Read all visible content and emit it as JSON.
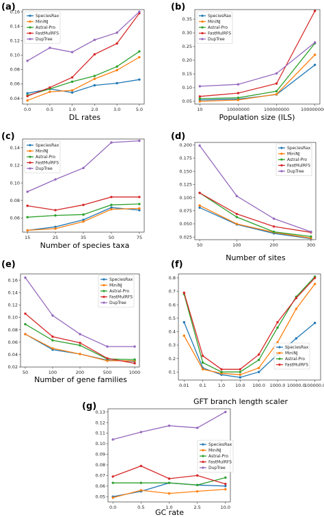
{
  "colors": {
    "SpeciesRax": "#1f77b4",
    "MiniNJ": "#ff7f0e",
    "Astral-Pro": "#2ca02c",
    "FastMulRFS": "#d62728",
    "DupTree": "#9467bd"
  },
  "chart_data": [
    {
      "panel": "(a)",
      "type": "line",
      "xlabel": "DL rates",
      "categories": [
        "0.0",
        "0.5",
        "1.0",
        "2.0",
        "3.0",
        "5.0"
      ],
      "yticks": [
        "0.04",
        "0.06",
        "0.08",
        "0.10",
        "0.12",
        "0.14",
        "0.16"
      ],
      "ylim": [
        0.032,
        0.163
      ],
      "legend": "upper-left",
      "series": [
        {
          "name": "SpeciesRax",
          "values": [
            0.047,
            0.053,
            0.048,
            0.058,
            0.061,
            0.066
          ]
        },
        {
          "name": "MiniNJ",
          "values": [
            0.037,
            0.049,
            0.051,
            0.067,
            0.079,
            0.097
          ]
        },
        {
          "name": "Astral-Pro",
          "values": [
            0.044,
            0.053,
            0.063,
            0.071,
            0.084,
            0.105
          ]
        },
        {
          "name": "FastMulRFS",
          "values": [
            0.043,
            0.055,
            0.069,
            0.101,
            0.116,
            0.158
          ]
        },
        {
          "name": "DupTree",
          "values": [
            0.092,
            0.11,
            0.104,
            0.121,
            0.131,
            0.16
          ]
        }
      ]
    },
    {
      "panel": "(b)",
      "type": "line",
      "xlabel": "Population size (ILS)",
      "categories": [
        "10",
        "10000000",
        "100000000",
        "1000000000"
      ],
      "yticks": [
        "0.05",
        "0.10",
        "0.15",
        "0.20",
        "0.25",
        "0.30",
        "0.35"
      ],
      "ylim": [
        0.04,
        0.385
      ],
      "legend": "upper-left",
      "series": [
        {
          "name": "SpeciesRax",
          "values": [
            0.055,
            0.058,
            0.075,
            0.183
          ]
        },
        {
          "name": "MiniNJ",
          "values": [
            0.05,
            0.055,
            0.076,
            0.22
          ]
        },
        {
          "name": "Astral-Pro",
          "values": [
            0.06,
            0.063,
            0.087,
            0.262
          ]
        },
        {
          "name": "FastMulRFS",
          "values": [
            0.068,
            0.08,
            0.115,
            0.38
          ]
        },
        {
          "name": "DupTree",
          "values": [
            0.105,
            0.112,
            0.152,
            0.265
          ]
        }
      ]
    },
    {
      "panel": "(c)",
      "type": "line",
      "xlabel": "Number of species taxa",
      "categories": [
        "15",
        "25",
        "35",
        "50",
        "75"
      ],
      "yticks": [
        "0.06",
        "0.08",
        "0.10",
        "0.12",
        "0.14"
      ],
      "ylim": [
        0.044,
        0.15
      ],
      "legend": "upper-left",
      "series": [
        {
          "name": "SpeciesRax",
          "values": [
            0.046,
            0.05,
            0.058,
            0.072,
            0.069
          ]
        },
        {
          "name": "MiniNJ",
          "values": [
            0.046,
            0.048,
            0.056,
            0.07,
            0.071
          ]
        },
        {
          "name": "Astral-Pro",
          "values": [
            0.061,
            0.063,
            0.064,
            0.075,
            0.076
          ]
        },
        {
          "name": "FastMulRFS",
          "values": [
            0.074,
            0.069,
            0.075,
            0.084,
            0.084
          ]
        },
        {
          "name": "DupTree",
          "values": [
            0.09,
            0.104,
            0.117,
            0.146,
            0.148
          ]
        }
      ]
    },
    {
      "panel": "(d)",
      "type": "line",
      "xlabel": "Number of sites",
      "categories": [
        "50",
        "100",
        "200",
        "300"
      ],
      "yticks": [
        "0.025",
        "0.050",
        "0.075",
        "0.100",
        "0.125",
        "0.150",
        "0.175",
        "0.200"
      ],
      "ylim": [
        0.02,
        0.205
      ],
      "legend": "upper-right",
      "series": [
        {
          "name": "SpeciesRax",
          "values": [
            0.081,
            0.049,
            0.032,
            0.022
          ]
        },
        {
          "name": "MiniNJ",
          "values": [
            0.085,
            0.05,
            0.034,
            0.023
          ]
        },
        {
          "name": "Astral-Pro",
          "values": [
            0.109,
            0.063,
            0.035,
            0.026
          ]
        },
        {
          "name": "FastMulRFS",
          "values": [
            0.109,
            0.069,
            0.045,
            0.034
          ]
        },
        {
          "name": "DupTree",
          "values": [
            0.199,
            0.103,
            0.06,
            0.035
          ]
        }
      ]
    },
    {
      "panel": "(e)",
      "type": "line",
      "xlabel": "Number of gene families",
      "categories": [
        "50",
        "100",
        "200",
        "500",
        "1000"
      ],
      "yticks": [
        "0.02",
        "0.04",
        "0.06",
        "0.08",
        "0.10",
        "0.12",
        "0.14",
        "0.16"
      ],
      "ylim": [
        0.02,
        0.17
      ],
      "legend": "upper-right",
      "series": [
        {
          "name": "SpeciesRax",
          "values": [
            0.073,
            0.048,
            0.041,
            0.031,
            0.029
          ]
        },
        {
          "name": "MiniNJ",
          "values": [
            0.073,
            0.05,
            0.041,
            0.03,
            0.03
          ]
        },
        {
          "name": "Astral-Pro",
          "values": [
            0.089,
            0.063,
            0.055,
            0.033,
            0.032
          ]
        },
        {
          "name": "FastMulRFS",
          "values": [
            0.106,
            0.069,
            0.059,
            0.034,
            0.026
          ]
        },
        {
          "name": "DupTree",
          "values": [
            0.164,
            0.103,
            0.073,
            0.053,
            0.053
          ]
        }
      ]
    },
    {
      "panel": "(f)",
      "type": "line",
      "xlabel": "GFT branch length scaler",
      "categories": [
        "0.01",
        "0.1",
        "1.0",
        "10.0",
        "100.0",
        "1000.0",
        "10000.0",
        "100000.0"
      ],
      "yticks": [
        "0.1",
        "0.2",
        "0.3",
        "0.4",
        "0.5",
        "0.6",
        "0.7",
        "0.8"
      ],
      "ylim": [
        0.04,
        0.83
      ],
      "legend": "lower-right",
      "series": [
        {
          "name": "SpeciesRax",
          "values": [
            0.47,
            0.13,
            0.08,
            0.06,
            0.1,
            0.23,
            0.35,
            0.465
          ]
        },
        {
          "name": "MiniNJ",
          "values": [
            0.37,
            0.12,
            0.09,
            0.08,
            0.13,
            0.32,
            0.57,
            0.755
          ]
        },
        {
          "name": "Astral-Pro",
          "values": [
            0.68,
            0.17,
            0.1,
            0.1,
            0.19,
            0.43,
            0.66,
            0.81
          ]
        },
        {
          "name": "FastMulRFS",
          "values": [
            0.69,
            0.22,
            0.12,
            0.12,
            0.23,
            0.47,
            0.65,
            0.8
          ]
        }
      ]
    },
    {
      "panel": "(g)",
      "type": "line",
      "xlabel": "GC rate",
      "categories": [
        "0.0",
        "0.5",
        "1.0",
        "2.5",
        "10.0"
      ],
      "yticks": [
        "0.05",
        "0.06",
        "0.07",
        "0.08",
        "0.09",
        "0.10",
        "0.11",
        "0.12",
        "0.13"
      ],
      "ylim": [
        0.045,
        0.133
      ],
      "legend": "center-right",
      "series": [
        {
          "name": "SpeciesRax",
          "values": [
            0.05,
            0.055,
            0.063,
            0.061,
            0.06
          ]
        },
        {
          "name": "MiniNJ",
          "values": [
            0.049,
            0.056,
            0.053,
            0.055,
            0.057
          ]
        },
        {
          "name": "Astral-Pro",
          "values": [
            0.063,
            0.063,
            0.063,
            0.061,
            0.068
          ]
        },
        {
          "name": "FastMulRFS",
          "values": [
            0.069,
            0.079,
            0.067,
            0.07,
            0.062
          ]
        },
        {
          "name": "DupTree",
          "values": [
            0.104,
            0.111,
            0.117,
            0.115,
            0.13
          ]
        }
      ]
    }
  ]
}
